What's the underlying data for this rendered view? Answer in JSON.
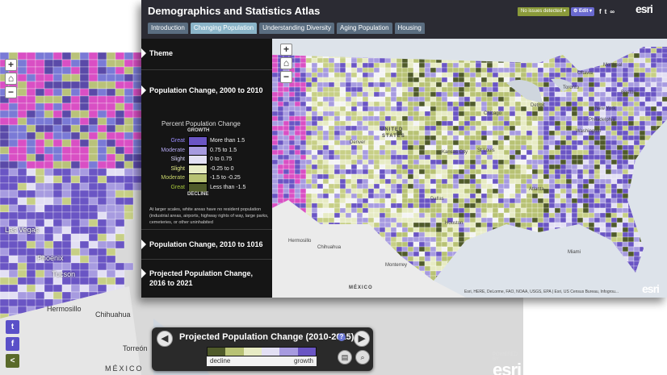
{
  "front": {
    "title": "Demographics and Statistics Atlas",
    "tabs": [
      "Introduction",
      "Changing Population",
      "Understanding Diversity",
      "Aging Population",
      "Housing"
    ],
    "active_tab": 1,
    "issues_badge": "No issues detected",
    "edit_label": "Edit",
    "share_icons": [
      "facebook-icon",
      "twitter-icon",
      "link-icon"
    ],
    "logo": "esri",
    "panel": {
      "sections": [
        "Theme",
        "Population Change, 2000 to 2010",
        "Population Change, 2010 to 1016",
        "Projected Population Change, 2016 to 2021"
      ],
      "legend": {
        "title": "Percent Population Change",
        "growth_label": "GROWTH",
        "decline_label": "DECLINE",
        "rows": [
          {
            "label": "Great",
            "range": "More than 1.5",
            "color": "#6a55c4",
            "label_color": "#9b8cff"
          },
          {
            "label": "Moderate",
            "range": "0.75 to 1.5",
            "color": "#a79be0",
            "label_color": "#b3a8f0"
          },
          {
            "label": "Slight",
            "range": "0 to 0.75",
            "color": "#e3e0f4",
            "label_color": "#d6d2f5"
          },
          {
            "label": "Slight",
            "range": "-0.25 to 0",
            "color": "#e7ebc4",
            "label_color": "#e8f08a"
          },
          {
            "label": "Moderate",
            "range": "-1.5 to -0.25",
            "color": "#b8c274",
            "label_color": "#c8d46a"
          },
          {
            "label": "Great",
            "range": "Less than -1.5",
            "color": "#4f5a2a",
            "label_color": "#a4c43a"
          }
        ],
        "note": "At larger scales, white areas have no resident population (industrial areas, airports, highway rights of way, large parks, cemeteries, or other uninhabited"
      }
    },
    "map_places": [
      "UNITED",
      "STATES",
      "Ottawa",
      "Montreal",
      "Toronto",
      "Boston",
      "Detroit",
      "Chicago",
      "New York",
      "Philadelphia",
      "Washington",
      "Denver",
      "Kansas City",
      "St Louis",
      "Dallas",
      "Houston",
      "Atlanta",
      "Miami",
      "Hermosillo",
      "Chihuahua",
      "Monterrey",
      "MÉXICO"
    ],
    "attribution": "Esri, HERE, DeLorme, FAO, NOAA, USGS, EPA | Esri, US Census Bureau, Infogrou..."
  },
  "back": {
    "places": [
      "Las Vegas",
      "Phoenix",
      "Tucson",
      "Hermosillo",
      "Chihuahua",
      "Torreón",
      "MÉXICO"
    ],
    "social": [
      {
        "icon": "twitter-icon",
        "glyph": "t",
        "color": "#5a50c8"
      },
      {
        "icon": "facebook-icon",
        "glyph": "f",
        "color": "#5a50c8"
      },
      {
        "icon": "share-icon",
        "glyph": "<",
        "color": "#5a6a2a"
      }
    ],
    "bottom_bar": {
      "title": "Projected Population Change (2010-2015)",
      "decline_label": "decline",
      "growth_label": "growth",
      "ramp": [
        "#4f5a2a",
        "#b8c274",
        "#e7ebc4",
        "#e3e0f4",
        "#a79be0",
        "#6a55c4"
      ],
      "prev_glyph": "◀",
      "next_glyph": "▶",
      "info_glyph": "?"
    },
    "logo_caption": "POWERED BY",
    "logo": "esri"
  }
}
